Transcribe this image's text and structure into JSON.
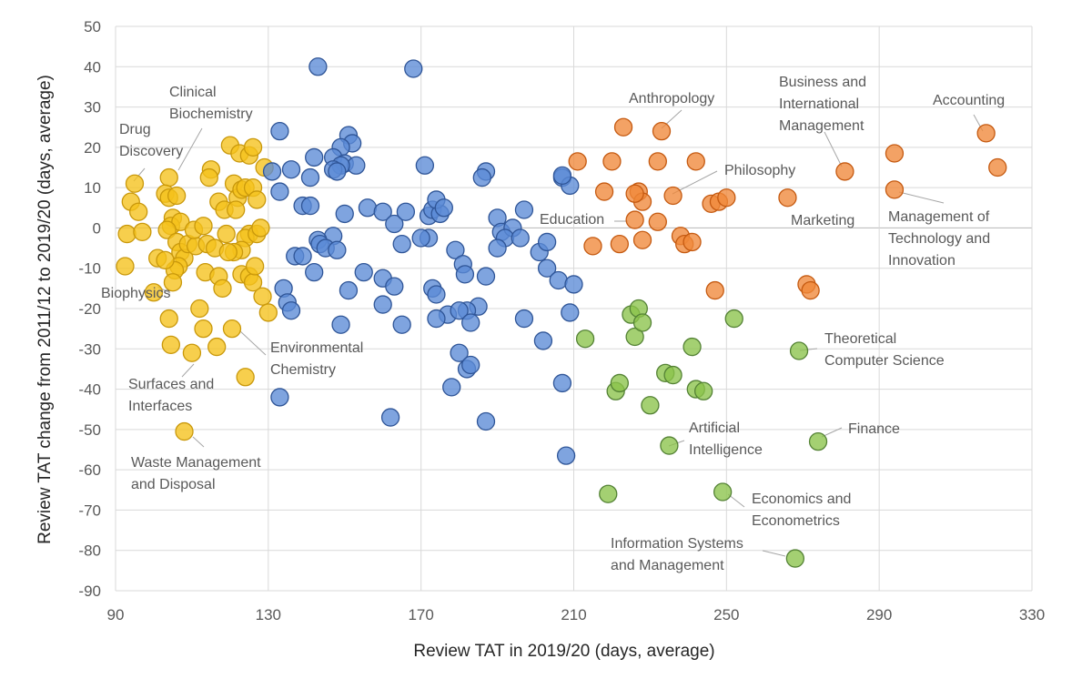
{
  "chart_data": {
    "type": "scatter",
    "xlabel": "Review TAT in 2019/20 (days, average)",
    "ylabel": "Review TAT change from 2011/12 to 2019/20 (days, average)",
    "xlim": [
      90,
      330
    ],
    "ylim": [
      -90,
      50
    ],
    "x_ticks": [
      90,
      130,
      170,
      210,
      250,
      290,
      330
    ],
    "y_ticks": [
      50,
      40,
      30,
      20,
      10,
      0,
      -10,
      -20,
      -30,
      -40,
      -50,
      -60,
      -70,
      -80,
      -90
    ],
    "grid": true,
    "legend": "none",
    "series": [
      {
        "name": "yellow",
        "color": "#f5c21b",
        "stroke": "#c9980b",
        "points": [
          [
            95,
            11
          ],
          [
            94,
            6.5
          ],
          [
            96,
            4
          ],
          [
            93,
            -1.5
          ],
          [
            97,
            -1
          ],
          [
            92.5,
            -9.5
          ],
          [
            101,
            -7.5
          ],
          [
            100,
            -16
          ],
          [
            104,
            12.5
          ],
          [
            103,
            8.5
          ],
          [
            104,
            7.5
          ],
          [
            106,
            8
          ],
          [
            105,
            2.5
          ],
          [
            104.5,
            0.5
          ],
          [
            107,
            1.5
          ],
          [
            103.5,
            -0.5
          ],
          [
            106,
            -3.5
          ],
          [
            107,
            -6
          ],
          [
            108,
            -7.5
          ],
          [
            106.5,
            -9.5
          ],
          [
            105.5,
            -10.5
          ],
          [
            105,
            -13.5
          ],
          [
            103,
            -8
          ],
          [
            104,
            -22.5
          ],
          [
            104.5,
            -29
          ],
          [
            110,
            -31
          ],
          [
            112,
            -20
          ],
          [
            113,
            -25
          ],
          [
            109,
            -4
          ],
          [
            111,
            -4.5
          ],
          [
            110.5,
            -0.5
          ],
          [
            113,
            0.5
          ],
          [
            114,
            -4
          ],
          [
            113.5,
            -11
          ],
          [
            115,
            14.5
          ],
          [
            114.5,
            12.5
          ],
          [
            117,
            6.5
          ],
          [
            118.5,
            4.5
          ],
          [
            116,
            -5
          ],
          [
            117,
            -12
          ],
          [
            118,
            -15
          ],
          [
            116.5,
            -29.5
          ],
          [
            119,
            -1.5
          ],
          [
            120,
            20.5
          ],
          [
            121,
            11
          ],
          [
            122,
            7.5
          ],
          [
            121.5,
            4.5
          ],
          [
            123,
            9.5
          ],
          [
            124,
            10
          ],
          [
            122.5,
            18.5
          ],
          [
            125,
            18
          ],
          [
            126,
            20
          ],
          [
            126,
            10
          ],
          [
            127,
            7
          ],
          [
            125,
            -1.5
          ],
          [
            124,
            -2.5
          ],
          [
            123,
            -5.5
          ],
          [
            121,
            -6
          ],
          [
            119.5,
            -6
          ],
          [
            120.5,
            -25
          ],
          [
            123,
            -11.5
          ],
          [
            125,
            -12
          ],
          [
            126,
            -13.5
          ],
          [
            126.5,
            -9.5
          ],
          [
            127,
            -1.5
          ],
          [
            128,
            0
          ],
          [
            129,
            15
          ],
          [
            128.5,
            -17
          ],
          [
            130,
            -21
          ],
          [
            124,
            -37
          ],
          [
            108,
            -50.5
          ]
        ]
      },
      {
        "name": "blue",
        "color": "#5b8bd6",
        "stroke": "#2f5597",
        "points": [
          [
            143,
            40
          ],
          [
            168,
            39.5
          ],
          [
            133,
            24
          ],
          [
            151,
            23
          ],
          [
            152,
            21
          ],
          [
            149,
            20
          ],
          [
            147,
            17.5
          ],
          [
            142,
            17.5
          ],
          [
            150,
            16
          ],
          [
            153,
            15.5
          ],
          [
            149,
            15.5
          ],
          [
            147,
            14.5
          ],
          [
            136,
            14.5
          ],
          [
            131,
            14
          ],
          [
            148,
            14
          ],
          [
            141,
            12.5
          ],
          [
            133,
            9
          ],
          [
            139,
            5.5
          ],
          [
            141,
            5.5
          ],
          [
            150,
            3.5
          ],
          [
            156,
            5
          ],
          [
            160,
            4
          ],
          [
            163,
            1
          ],
          [
            166,
            4
          ],
          [
            172,
            3
          ],
          [
            173,
            4.5
          ],
          [
            175,
            3.5
          ],
          [
            174,
            7
          ],
          [
            176,
            5
          ],
          [
            171,
            15.5
          ],
          [
            172,
            -2.5
          ],
          [
            170,
            -2.5
          ],
          [
            165,
            -4
          ],
          [
            160,
            -12.5
          ],
          [
            163,
            -14.5
          ],
          [
            147,
            -2
          ],
          [
            143,
            -3
          ],
          [
            143.5,
            -4
          ],
          [
            145,
            -5
          ],
          [
            137,
            -7
          ],
          [
            139,
            -7
          ],
          [
            142,
            -11
          ],
          [
            148,
            -5.5
          ],
          [
            151,
            -15.5
          ],
          [
            155,
            -11
          ],
          [
            160,
            -19
          ],
          [
            173,
            -15
          ],
          [
            174,
            -16.5
          ],
          [
            177,
            -21.5
          ],
          [
            174,
            -22.5
          ],
          [
            149,
            -24
          ],
          [
            134,
            -15
          ],
          [
            135,
            -18.5
          ],
          [
            136,
            -20.5
          ],
          [
            133,
            -42
          ],
          [
            162,
            -47
          ],
          [
            165,
            -24
          ],
          [
            179,
            -5.5
          ],
          [
            181,
            -9
          ],
          [
            181.5,
            -11.5
          ],
          [
            185,
            -19.5
          ],
          [
            182,
            -20.5
          ],
          [
            180,
            -20.5
          ],
          [
            183,
            -23.5
          ],
          [
            180,
            -31
          ],
          [
            182,
            -35
          ],
          [
            183,
            -34
          ],
          [
            178,
            -39.5
          ],
          [
            187,
            -48
          ],
          [
            187,
            14
          ],
          [
            186,
            12.5
          ],
          [
            190,
            2.5
          ],
          [
            191,
            -1
          ],
          [
            194,
            0
          ],
          [
            197,
            4.5
          ],
          [
            192,
            -2.5
          ],
          [
            196,
            -2.5
          ],
          [
            190,
            -5
          ],
          [
            187,
            -12
          ],
          [
            197,
            -22.5
          ],
          [
            201,
            -6
          ],
          [
            203,
            -3.5
          ],
          [
            203,
            -10
          ],
          [
            206,
            -13
          ],
          [
            207,
            12.5
          ],
          [
            209,
            10.5
          ],
          [
            207,
            13
          ],
          [
            202,
            -28
          ],
          [
            207,
            -38.5
          ],
          [
            208,
            -56.5
          ],
          [
            209,
            -21
          ],
          [
            210,
            -14
          ]
        ]
      },
      {
        "name": "orange",
        "color": "#f0883a",
        "stroke": "#c55a11",
        "points": [
          [
            211,
            16.5
          ],
          [
            220,
            16.5
          ],
          [
            223,
            25
          ],
          [
            233,
            24
          ],
          [
            227,
            9
          ],
          [
            228,
            6.5
          ],
          [
            226,
            8.5
          ],
          [
            226,
            2
          ],
          [
            232,
            16.5
          ],
          [
            236,
            8
          ],
          [
            238,
            -2
          ],
          [
            239,
            -4
          ],
          [
            232,
            1.5
          ],
          [
            228,
            -3
          ],
          [
            222,
            -4
          ],
          [
            215,
            -4.5
          ],
          [
            218,
            9
          ],
          [
            242,
            16.5
          ],
          [
            241,
            -3.5
          ],
          [
            247,
            -15.5
          ],
          [
            246,
            6
          ],
          [
            248,
            6.5
          ],
          [
            250,
            7.5
          ],
          [
            266,
            7.5
          ],
          [
            271,
            -14
          ],
          [
            272,
            -15.5
          ],
          [
            281,
            14
          ],
          [
            294,
            18.5
          ],
          [
            294,
            9.5
          ],
          [
            318,
            23.5
          ],
          [
            321,
            15
          ]
        ]
      },
      {
        "name": "green",
        "color": "#8bc34a",
        "stroke": "#548235",
        "points": [
          [
            213,
            -27.5
          ],
          [
            219,
            -66
          ],
          [
            221,
            -40.5
          ],
          [
            222,
            -38.5
          ],
          [
            225,
            -21.5
          ],
          [
            227,
            -20
          ],
          [
            226,
            -27
          ],
          [
            228,
            -23.5
          ],
          [
            230,
            -44
          ],
          [
            234,
            -36
          ],
          [
            236,
            -36.5
          ],
          [
            241,
            -29.5
          ],
          [
            242,
            -40
          ],
          [
            244,
            -40.5
          ],
          [
            235,
            -54
          ],
          [
            249,
            -65.5
          ],
          [
            252,
            -22.5
          ],
          [
            269,
            -30.5
          ],
          [
            274,
            -53
          ],
          [
            268,
            -82
          ]
        ]
      }
    ],
    "annotations": [
      {
        "lines": [
          "Drug",
          "Discovery"
        ]
      },
      {
        "lines": [
          "Clinical",
          "Biochemistry"
        ]
      },
      {
        "lines": [
          "Biophysics"
        ]
      },
      {
        "lines": [
          "Environmental",
          "Chemistry"
        ]
      },
      {
        "lines": [
          "Surfaces and",
          "Interfaces"
        ]
      },
      {
        "lines": [
          "Waste Management",
          "and Disposal"
        ]
      },
      {
        "lines": [
          "Anthropology"
        ]
      },
      {
        "lines": [
          "Philosophy"
        ]
      },
      {
        "lines": [
          "Education"
        ]
      },
      {
        "lines": [
          "Business and",
          "International",
          "Management"
        ]
      },
      {
        "lines": [
          "Marketing"
        ]
      },
      {
        "lines": [
          "Accounting"
        ]
      },
      {
        "lines": [
          "Management of",
          "Technology and",
          "Innovation"
        ]
      },
      {
        "lines": [
          "Theoretical",
          "Computer Science"
        ]
      },
      {
        "lines": [
          "Finance"
        ]
      },
      {
        "lines": [
          "Artificial",
          "Intelligence"
        ]
      },
      {
        "lines": [
          "Economics and",
          "Econometrics"
        ]
      },
      {
        "lines": [
          "Information Systems",
          "and Management"
        ]
      }
    ]
  }
}
